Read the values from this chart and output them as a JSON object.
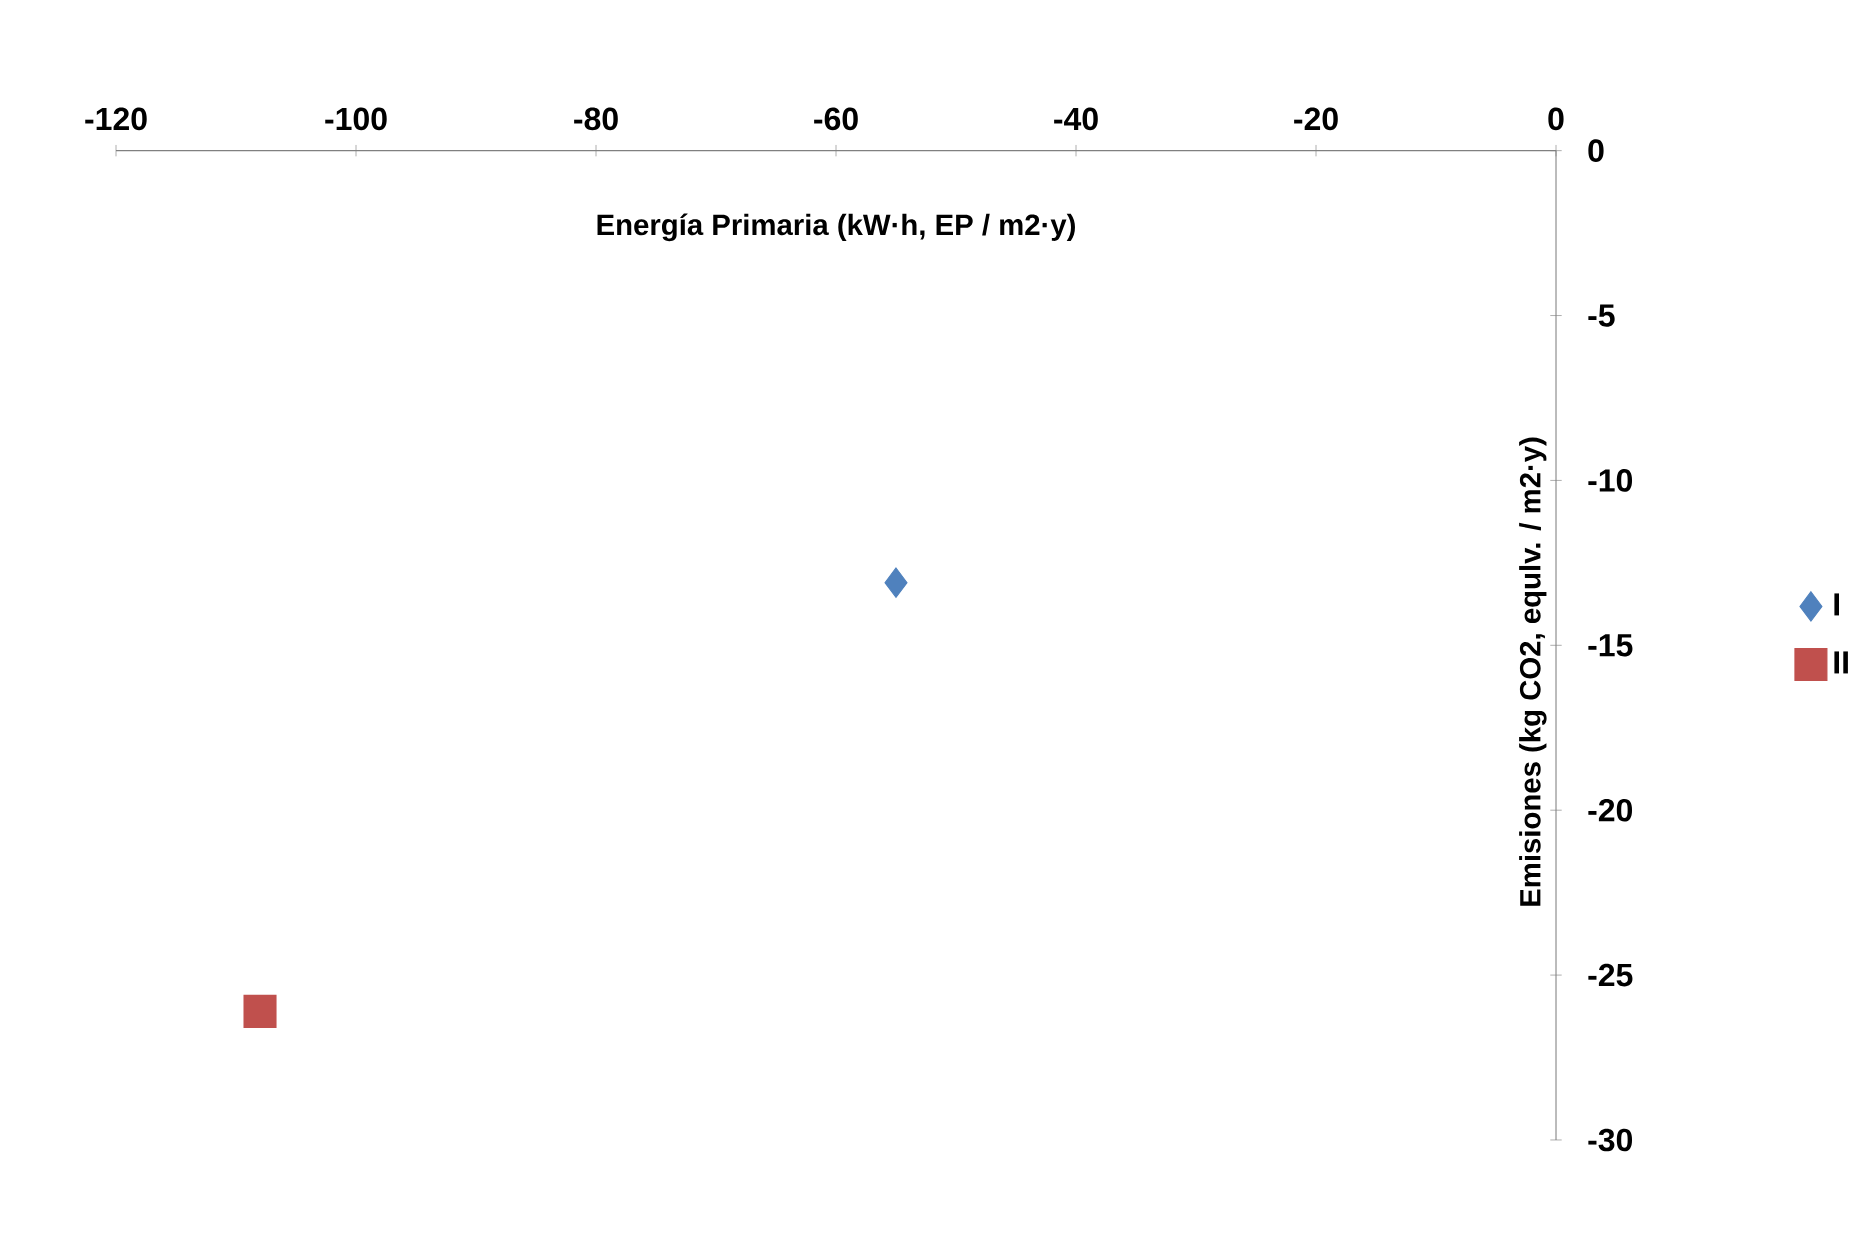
{
  "chart_data": {
    "type": "scatter",
    "xlabel": "Energía Primaria (kW·h, EP / m2·y)",
    "ylabel": "Emisiones (kg CO2, equlv. / m2·y)",
    "series": [
      {
        "name": "I",
        "color": "#4f81bd",
        "marker": "diamond",
        "x": [
          -55
        ],
        "values": [
          -13.1
        ]
      },
      {
        "name": "II",
        "color": "#c0504d",
        "marker": "square",
        "x": [
          -108
        ],
        "values": [
          -26.1
        ]
      }
    ],
    "xlim": [
      -120,
      0
    ],
    "ylim": [
      -30,
      0
    ],
    "xticks": [
      -120,
      -100,
      -80,
      -60,
      -40,
      -20,
      0
    ],
    "yticks": [
      0,
      -5,
      -10,
      -15,
      -20,
      -25,
      -30
    ],
    "grid": false,
    "legend": "right"
  }
}
